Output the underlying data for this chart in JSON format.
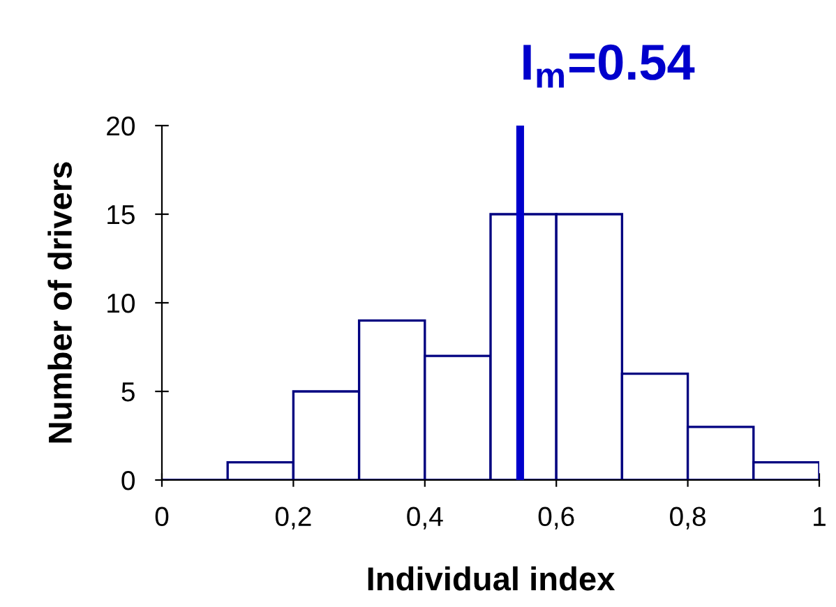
{
  "chart_data": {
    "type": "histogram",
    "xlabel": "Individual index",
    "ylabel": "Number of drivers",
    "bins": [
      0,
      0.1,
      0.2,
      0.3,
      0.4,
      0.5,
      0.6,
      0.7,
      0.8,
      0.9,
      1.0
    ],
    "values": [
      0,
      1,
      5,
      9,
      7,
      15,
      15,
      6,
      3,
      1
    ],
    "color": "#000080",
    "xlim": [
      0,
      1
    ],
    "ylim": [
      0,
      20
    ],
    "xticks": [
      0,
      {
        "value": 0.2,
        "label": "0,2"
      },
      {
        "value": 0.4,
        "label": "0,4"
      },
      {
        "value": 0.6,
        "label": "0,6"
      },
      {
        "value": 0.8,
        "label": "0,8"
      },
      1
    ],
    "yticks": [
      0,
      5,
      10,
      15,
      20
    ],
    "ref_lines": [
      {
        "axis": "x",
        "value": 0.545,
        "label": "I$_{m}$=0.54",
        "color": "#0000cc"
      }
    ],
    "grid": false,
    "legend": false
  }
}
